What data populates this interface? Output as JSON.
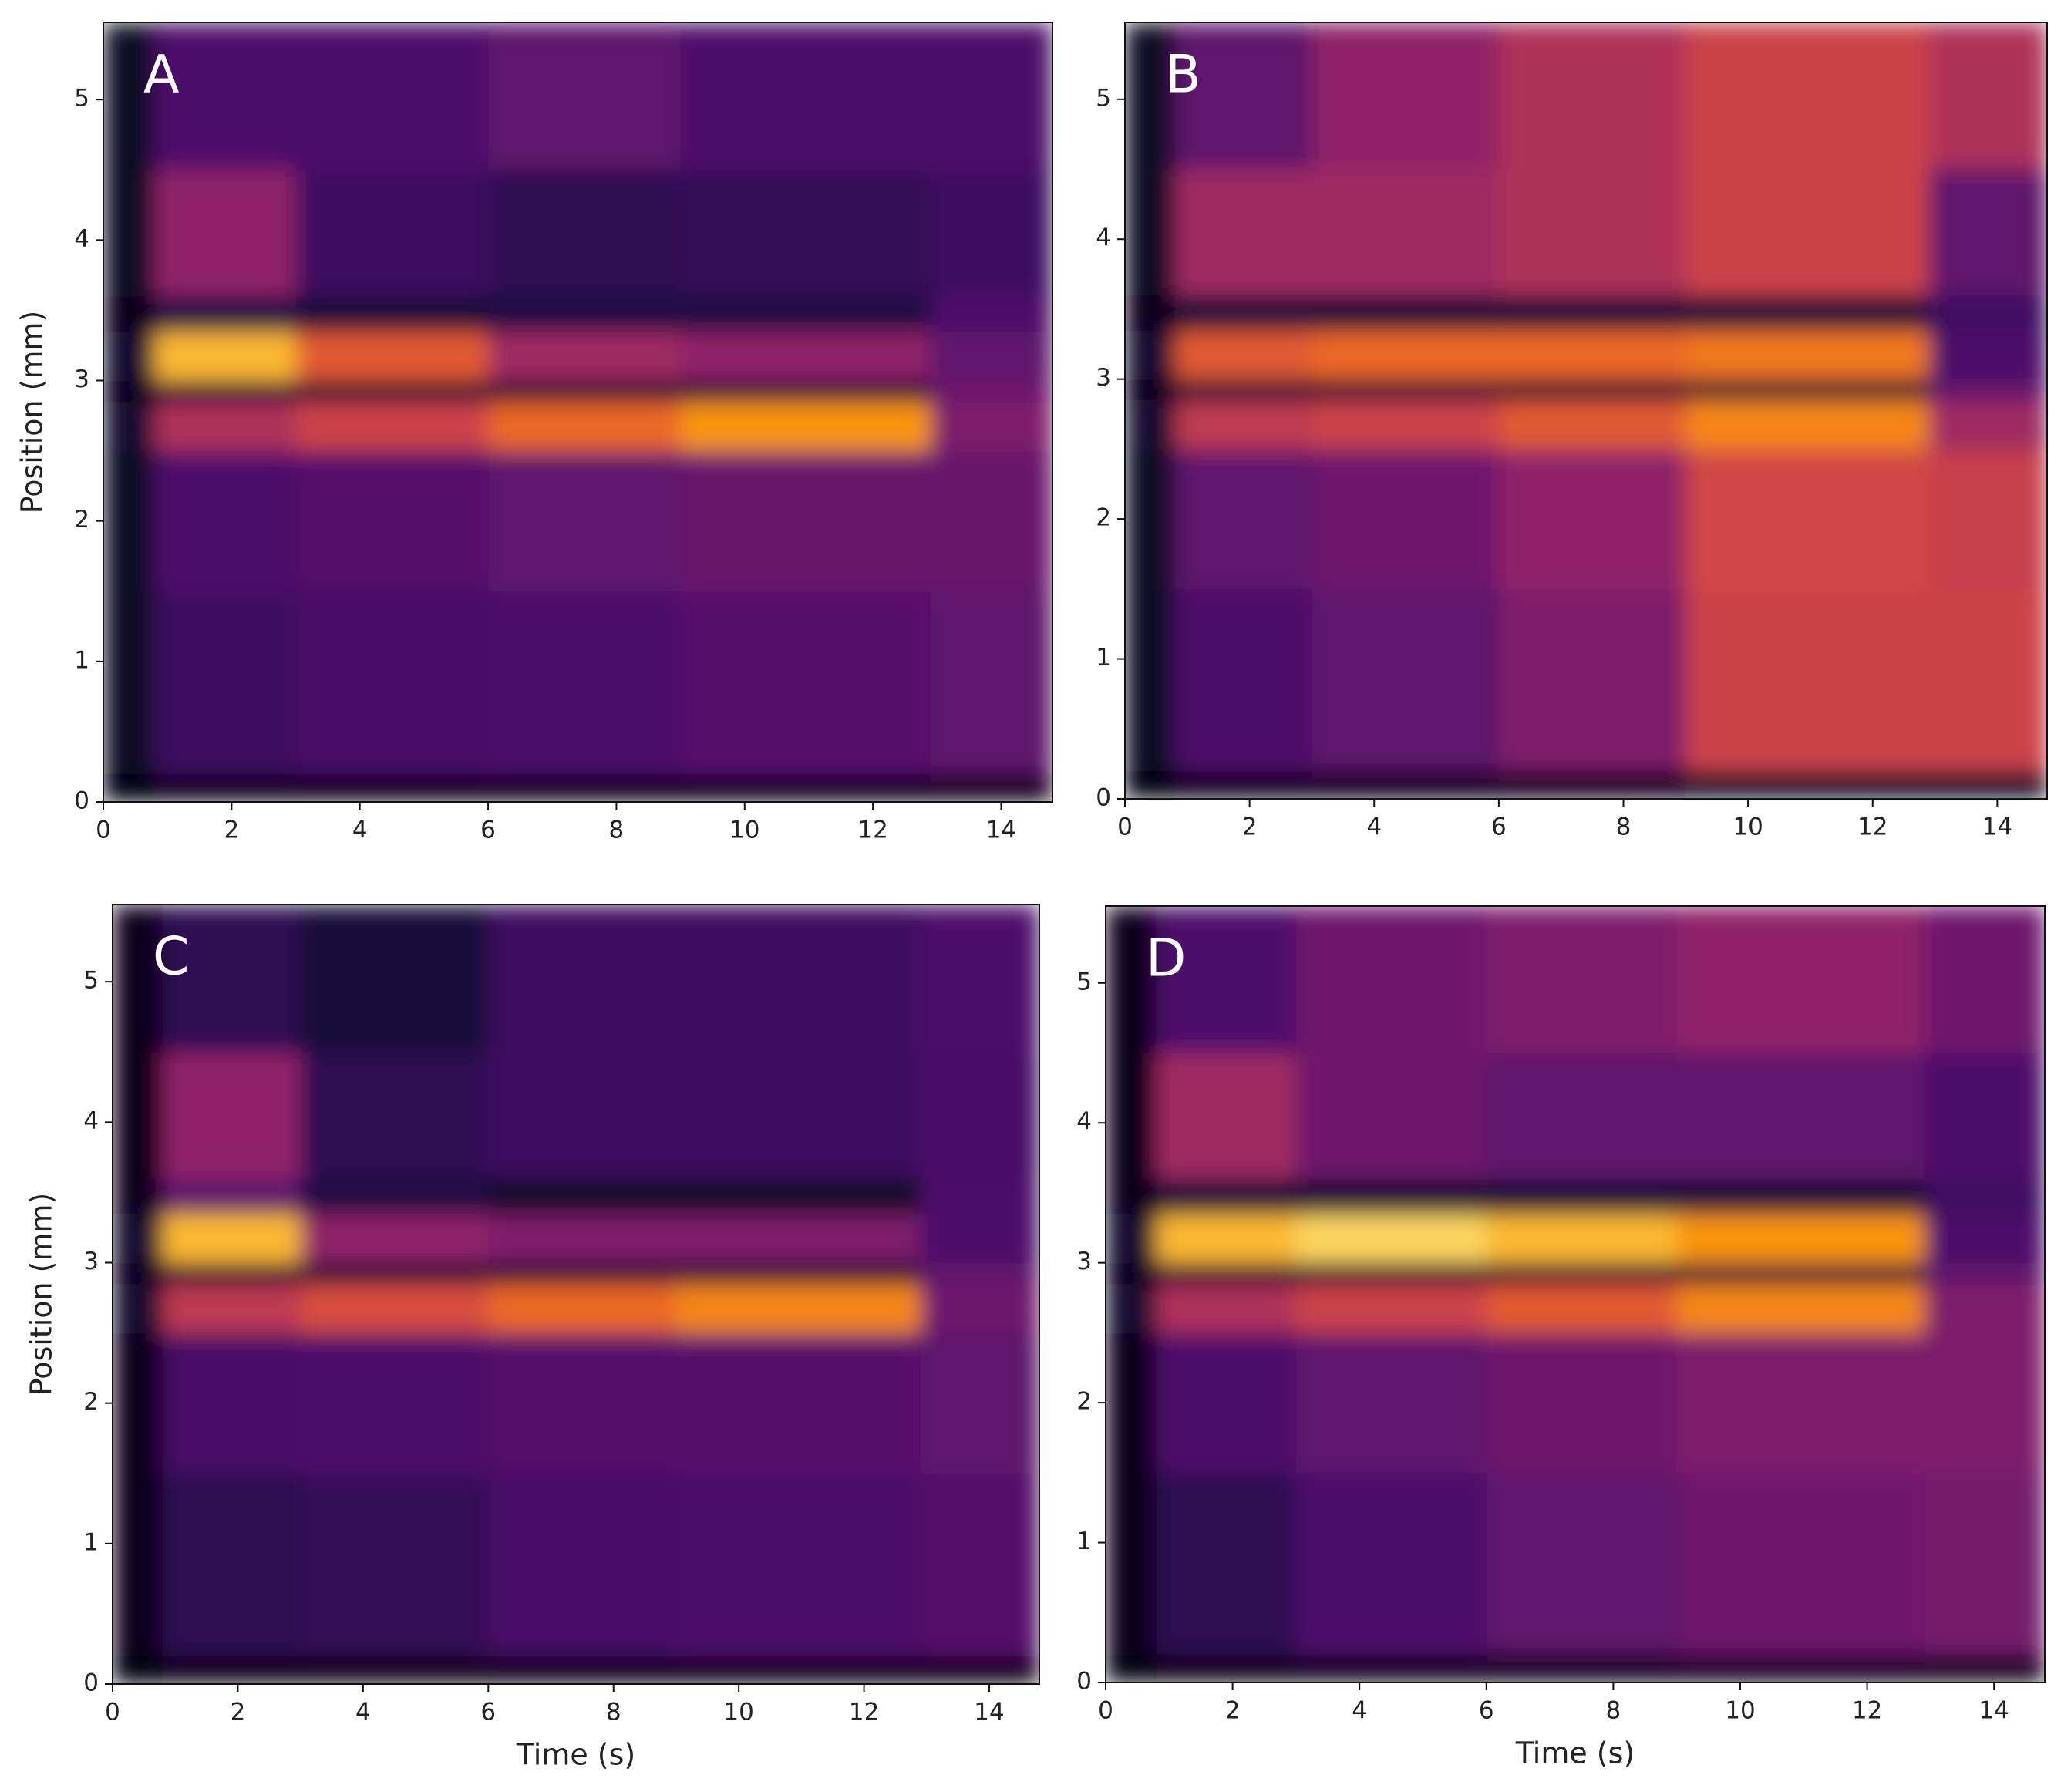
{
  "chart_data": [
    {
      "type": "heatmap",
      "label": "A",
      "ylabel": "Position (mm)",
      "colormap": "inferno",
      "xlim": [
        0,
        14.8
      ],
      "ylim": [
        0,
        5.55
      ],
      "xticks": [
        0,
        2,
        4,
        6,
        8,
        10,
        12,
        14
      ],
      "yticks": [
        0,
        1,
        2,
        3,
        4,
        5
      ],
      "xbins": [
        0,
        0.8,
        3,
        6,
        9,
        12.9,
        14.8
      ],
      "ybins": [
        0,
        0.2,
        1.5,
        2.5,
        2.85,
        3.0,
        3.35,
        3.6,
        4.5,
        5.55
      ],
      "values": [
        [
          0.02,
          0.05,
          0.05,
          0.05,
          0.05,
          0.05
        ],
        [
          0.08,
          0.25,
          0.28,
          0.3,
          0.33,
          0.35
        ],
        [
          0.08,
          0.3,
          0.32,
          0.35,
          0.38,
          0.38
        ],
        [
          0.1,
          0.6,
          0.7,
          0.85,
          0.92,
          0.45
        ],
        [
          0.05,
          0.1,
          0.1,
          0.1,
          0.1,
          0.4
        ],
        [
          0.1,
          0.95,
          0.8,
          0.55,
          0.5,
          0.35
        ],
        [
          0.05,
          0.15,
          0.12,
          0.15,
          0.15,
          0.3
        ],
        [
          0.08,
          0.5,
          0.25,
          0.2,
          0.22,
          0.25
        ],
        [
          0.08,
          0.3,
          0.3,
          0.35,
          0.3,
          0.3
        ]
      ]
    },
    {
      "type": "heatmap",
      "label": "B",
      "colormap": "inferno",
      "xlim": [
        0,
        14.8
      ],
      "ylim": [
        0,
        5.55
      ],
      "xticks": [
        0,
        2,
        4,
        6,
        8,
        10,
        12,
        14
      ],
      "yticks": [
        0,
        1,
        2,
        3,
        4,
        5
      ],
      "xbins": [
        0,
        0.8,
        3,
        6,
        9,
        12.9,
        14.8
      ],
      "ybins": [
        0,
        0.2,
        1.5,
        2.5,
        2.85,
        3.0,
        3.35,
        3.6,
        4.5,
        5.55
      ],
      "values": [
        [
          0.02,
          0.05,
          0.05,
          0.06,
          0.08,
          0.08
        ],
        [
          0.08,
          0.3,
          0.35,
          0.45,
          0.7,
          0.7
        ],
        [
          0.08,
          0.35,
          0.4,
          0.5,
          0.72,
          0.68
        ],
        [
          0.1,
          0.65,
          0.7,
          0.8,
          0.9,
          0.55
        ],
        [
          0.05,
          0.1,
          0.1,
          0.1,
          0.1,
          0.35
        ],
        [
          0.1,
          0.8,
          0.85,
          0.85,
          0.88,
          0.3
        ],
        [
          0.05,
          0.12,
          0.12,
          0.12,
          0.12,
          0.25
        ],
        [
          0.08,
          0.55,
          0.55,
          0.6,
          0.7,
          0.35
        ],
        [
          0.08,
          0.35,
          0.5,
          0.6,
          0.7,
          0.6
        ]
      ]
    },
    {
      "type": "heatmap",
      "label": "C",
      "xlabel": "Time (s)",
      "ylabel": "Position (mm)",
      "colormap": "inferno",
      "xlim": [
        0,
        14.8
      ],
      "ylim": [
        0,
        5.55
      ],
      "xticks": [
        0,
        2,
        4,
        6,
        8,
        10,
        12,
        14
      ],
      "yticks": [
        0,
        1,
        2,
        3,
        4,
        5
      ],
      "xbins": [
        0,
        0.8,
        3,
        6,
        9,
        12.9,
        14.8
      ],
      "ybins": [
        0,
        0.2,
        1.5,
        2.5,
        2.85,
        3.0,
        3.35,
        3.6,
        4.5,
        5.55
      ],
      "values": [
        [
          0.02,
          0.04,
          0.04,
          0.04,
          0.04,
          0.04
        ],
        [
          0.06,
          0.2,
          0.22,
          0.28,
          0.3,
          0.32
        ],
        [
          0.06,
          0.28,
          0.3,
          0.32,
          0.33,
          0.35
        ],
        [
          0.1,
          0.65,
          0.75,
          0.85,
          0.9,
          0.4
        ],
        [
          0.05,
          0.1,
          0.1,
          0.1,
          0.1,
          0.35
        ],
        [
          0.1,
          0.95,
          0.5,
          0.45,
          0.45,
          0.3
        ],
        [
          0.05,
          0.35,
          0.15,
          0.08,
          0.08,
          0.3
        ],
        [
          0.06,
          0.5,
          0.2,
          0.25,
          0.25,
          0.28
        ],
        [
          0.06,
          0.2,
          0.12,
          0.25,
          0.25,
          0.3
        ]
      ]
    },
    {
      "type": "heatmap",
      "label": "D",
      "xlabel": "Time (s)",
      "colormap": "inferno",
      "xlim": [
        0,
        14.8
      ],
      "ylim": [
        0,
        5.55
      ],
      "xticks": [
        0,
        2,
        4,
        6,
        8,
        10,
        12,
        14
      ],
      "yticks": [
        0,
        1,
        2,
        3,
        4,
        5
      ],
      "xbins": [
        0,
        0.8,
        3,
        6,
        9,
        12.9,
        14.8
      ],
      "ybins": [
        0,
        0.2,
        1.5,
        2.5,
        2.85,
        3.0,
        3.35,
        3.6,
        4.5,
        5.55
      ],
      "values": [
        [
          0.02,
          0.04,
          0.05,
          0.05,
          0.05,
          0.05
        ],
        [
          0.06,
          0.2,
          0.3,
          0.35,
          0.4,
          0.42
        ],
        [
          0.06,
          0.3,
          0.35,
          0.4,
          0.45,
          0.45
        ],
        [
          0.1,
          0.6,
          0.7,
          0.8,
          0.9,
          0.45
        ],
        [
          0.05,
          0.1,
          0.1,
          0.1,
          0.1,
          0.35
        ],
        [
          0.1,
          0.95,
          0.97,
          0.95,
          0.92,
          0.3
        ],
        [
          0.05,
          0.12,
          0.12,
          0.12,
          0.12,
          0.25
        ],
        [
          0.06,
          0.55,
          0.4,
          0.35,
          0.35,
          0.3
        ],
        [
          0.06,
          0.3,
          0.4,
          0.45,
          0.5,
          0.4
        ]
      ]
    }
  ]
}
